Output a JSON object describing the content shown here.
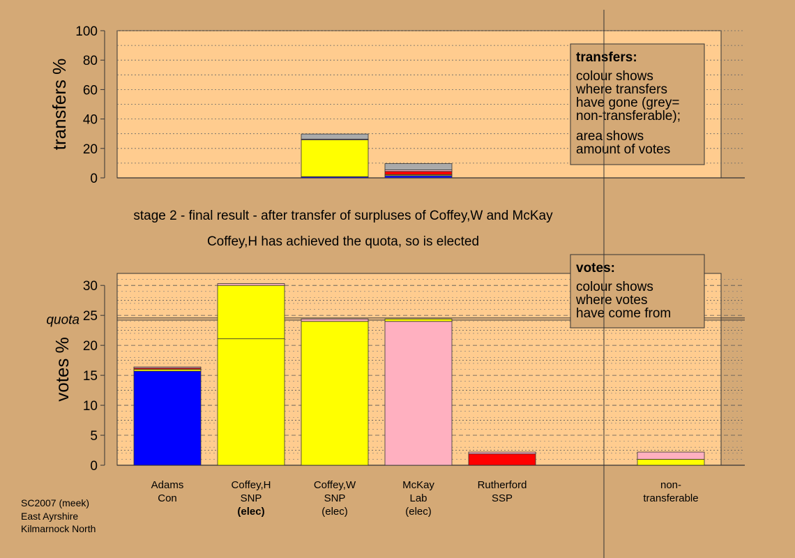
{
  "chart_data": [
    {
      "type": "bar",
      "title": "transfers",
      "ylabel": "transfers %",
      "ylim": [
        0,
        100
      ],
      "yticks": [
        0,
        20,
        40,
        60,
        80,
        100
      ],
      "categories": [
        "Adams Con",
        "Coffey,H SNP",
        "Coffey,W SNP",
        "McKay Lab",
        "Rutherford SSP",
        "non-transferable"
      ],
      "stacks": [
        [],
        [],
        [
          {
            "value": 0.8,
            "color": "#1010ff"
          },
          {
            "value": 25.0,
            "color": "#ffff00"
          },
          {
            "value": 0.5,
            "color": "#ffb0c0"
          },
          {
            "value": 3.5,
            "color": "#aaaaaa"
          }
        ],
        [
          {
            "value": 1.5,
            "color": "#1010ff"
          },
          {
            "value": 0.7,
            "color": "#ffff00"
          },
          {
            "value": 2.2,
            "color": "#ff0000"
          },
          {
            "value": 1.0,
            "color": "#ffb0c0"
          },
          {
            "value": 4.3,
            "color": "#aaaaaa"
          }
        ],
        [],
        []
      ],
      "legend": {
        "title": "transfers:",
        "lines1": [
          "colour shows",
          "where transfers",
          "have gone (grey=",
          "non-transferable);"
        ],
        "lines2": [
          "area shows",
          "amount of votes"
        ]
      }
    },
    {
      "type": "bar",
      "title": "votes",
      "ylabel": "votes %",
      "ylim": [
        0,
        32
      ],
      "yticks": [
        0,
        5,
        10,
        15,
        20,
        25,
        30
      ],
      "quota": 24.4,
      "quota_label": "quota",
      "categories": [
        "Adams Con",
        "Coffey,H SNP",
        "Coffey,W SNP",
        "McKay Lab",
        "Rutherford SSP",
        "non-transferable"
      ],
      "stacks": [
        [
          {
            "value": 15.7,
            "color": "#0000ff"
          },
          {
            "value": 0.3,
            "color": "#ffff00"
          },
          {
            "value": 0.2,
            "color": "#ff0000"
          },
          {
            "value": 0.2,
            "color": "#ffb0c0"
          }
        ],
        [
          {
            "value": 21.1,
            "color": "#ffff00"
          },
          {
            "value": 8.9,
            "color": "#ffff00"
          },
          {
            "value": 0.3,
            "color": "#ffb0c0"
          }
        ],
        [
          {
            "value": 24.0,
            "color": "#ffff00"
          },
          {
            "value": 0.4,
            "color": "#ffb0c0"
          }
        ],
        [
          {
            "value": 24.0,
            "color": "#ffb0c0"
          },
          {
            "value": 0.4,
            "color": "#ffff00"
          }
        ],
        [
          {
            "value": 1.9,
            "color": "#ff0000"
          },
          {
            "value": 0.3,
            "color": "#ffb0c0"
          }
        ],
        [
          {
            "value": 1.0,
            "color": "#ffff00"
          },
          {
            "value": 1.2,
            "color": "#ffb0c0"
          }
        ]
      ],
      "legend": {
        "title": "votes:",
        "lines1": [
          "colour shows",
          "where votes",
          "have come from"
        ]
      }
    }
  ],
  "candidates": [
    {
      "name": "Adams",
      "party": "Con",
      "status": "",
      "status_bold": false
    },
    {
      "name": "Coffey,H",
      "party": "SNP",
      "status": "(elec)",
      "status_bold": true
    },
    {
      "name": "Coffey,W",
      "party": "SNP",
      "status": "(elec)",
      "status_bold": false
    },
    {
      "name": "McKay",
      "party": "Lab",
      "status": "(elec)",
      "status_bold": false
    },
    {
      "name": "Rutherford",
      "party": "SSP",
      "status": "",
      "status_bold": false
    },
    {
      "name": "non-",
      "party": "transferable",
      "status": "",
      "status_bold": false
    }
  ],
  "captions": {
    "stage": "stage 2 - final result - after transfer of surpluses of Coffey,W and McKay",
    "elected": "Coffey,H has achieved the quota, so is elected"
  },
  "footer": [
    "SC2007 (meek)",
    "East Ayrshire",
    "Kilmarnock North"
  ],
  "colors": {
    "background": "#d4a976",
    "plot_background": "#ffcc8f",
    "legend_background": "#d4a976"
  }
}
